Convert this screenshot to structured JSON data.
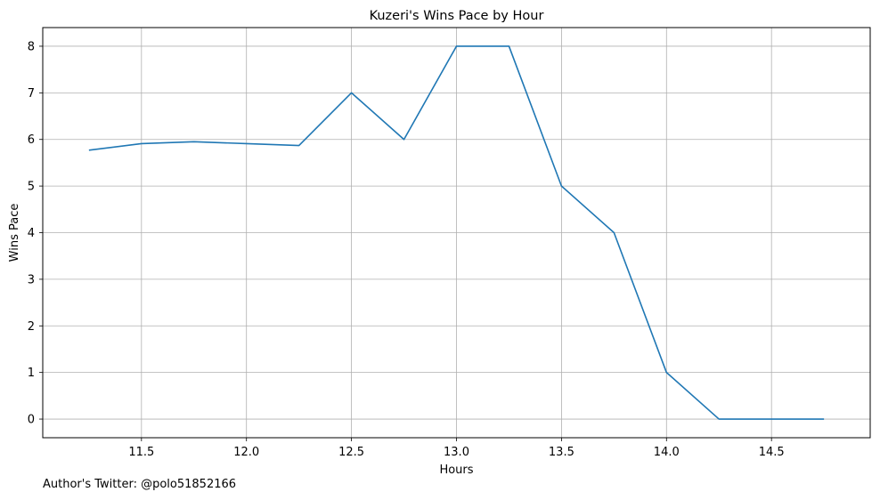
{
  "chart_data": {
    "type": "line",
    "title": "Kuzeri's Wins Pace by Hour",
    "xlabel": "Hours",
    "ylabel": "Wins Pace",
    "xlim": [
      11.03,
      14.97
    ],
    "ylim": [
      -0.4,
      8.4
    ],
    "xticks": [
      11.5,
      12.0,
      12.5,
      13.0,
      13.5,
      14.0,
      14.5
    ],
    "xtick_labels": [
      "11.5",
      "12.0",
      "12.5",
      "13.0",
      "13.5",
      "14.0",
      "14.5"
    ],
    "yticks": [
      0,
      1,
      2,
      3,
      4,
      5,
      6,
      7,
      8
    ],
    "ytick_labels": [
      "0",
      "1",
      "2",
      "3",
      "4",
      "5",
      "6",
      "7",
      "8"
    ],
    "grid": true,
    "series": [
      {
        "color": "#1f77b4",
        "x": [
          11.25,
          11.5,
          11.75,
          12.0,
          12.25,
          12.5,
          12.75,
          13.0,
          13.25,
          13.5,
          13.75,
          14.0,
          14.25,
          14.5,
          14.75
        ],
        "y": [
          5.77,
          5.91,
          5.95,
          5.91,
          5.87,
          7.0,
          6.0,
          8.0,
          8.0,
          5.0,
          4.0,
          1.0,
          0.0,
          0.0,
          0.0
        ]
      }
    ]
  },
  "credit": "Author's Twitter: @polo51852166"
}
